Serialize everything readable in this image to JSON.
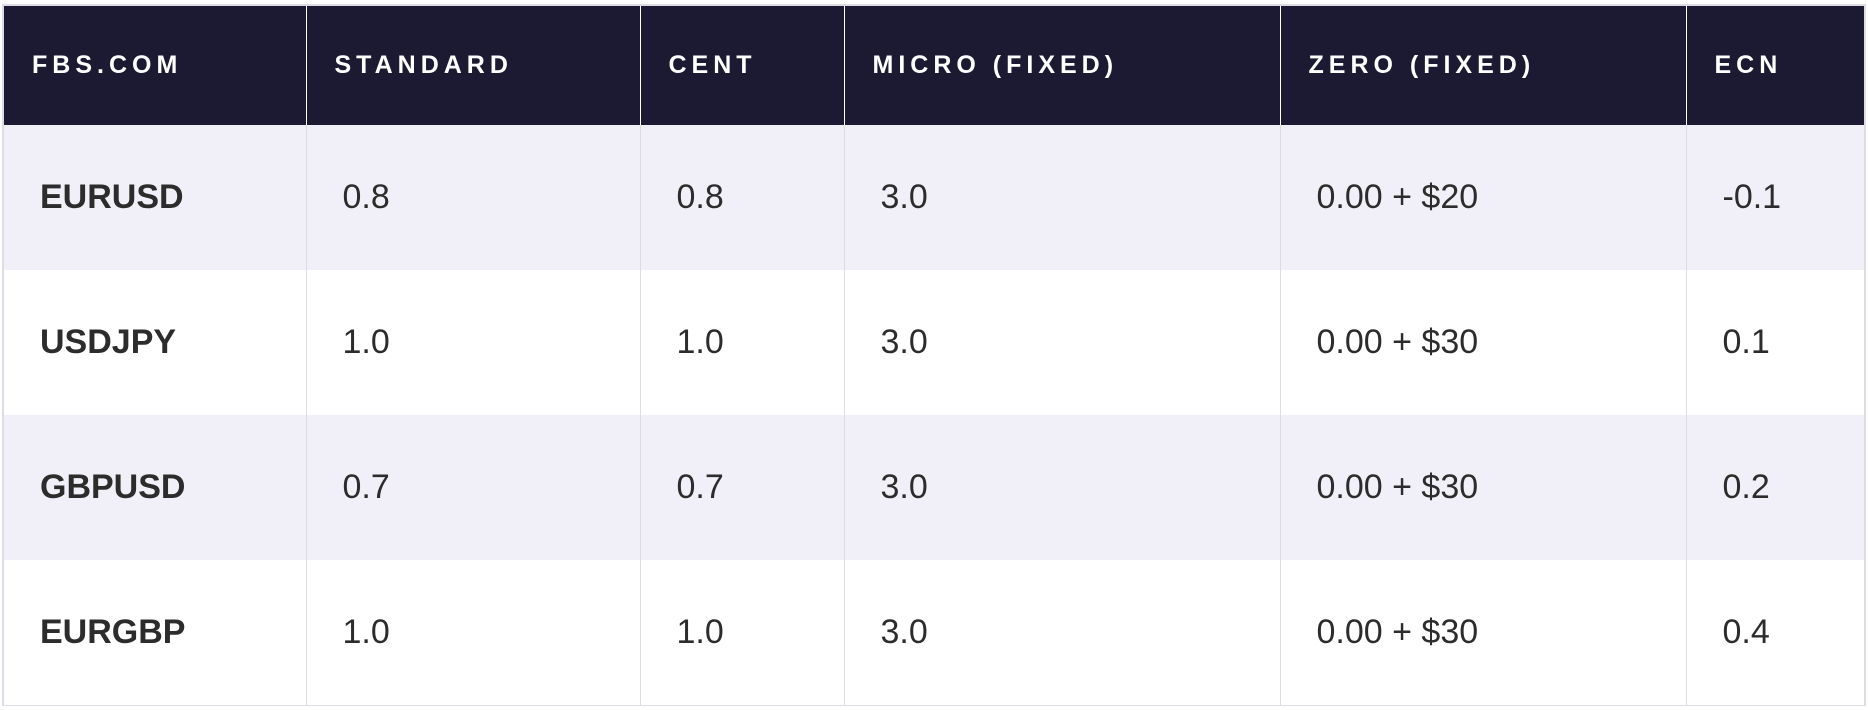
{
  "table": {
    "headers": [
      "FBS.COM",
      "STANDARD",
      "CENT",
      "MICRO (FIXED)",
      "ZERO (FIXED)",
      "ECN"
    ],
    "rows": [
      [
        "EURUSD",
        "0.8",
        "0.8",
        "3.0",
        "0.00 + $20",
        "-0.1"
      ],
      [
        "USDJPY",
        "1.0",
        "1.0",
        "3.0",
        "0.00 + $30",
        "0.1"
      ],
      [
        "GBPUSD",
        "0.7",
        "0.7",
        "3.0",
        "0.00 + $30",
        "0.2"
      ],
      [
        "EURGBP",
        "1.0",
        "1.0",
        "3.0",
        "0.00 + $30",
        "0.4"
      ]
    ]
  },
  "colors": {
    "header_bg": "#1c1a33",
    "header_text": "#ffffff",
    "row_alt_bg": "#f1f0f8",
    "row_bg": "#ffffff",
    "body_text": "#2c2c2c",
    "grid_line": "#dcdce2"
  }
}
